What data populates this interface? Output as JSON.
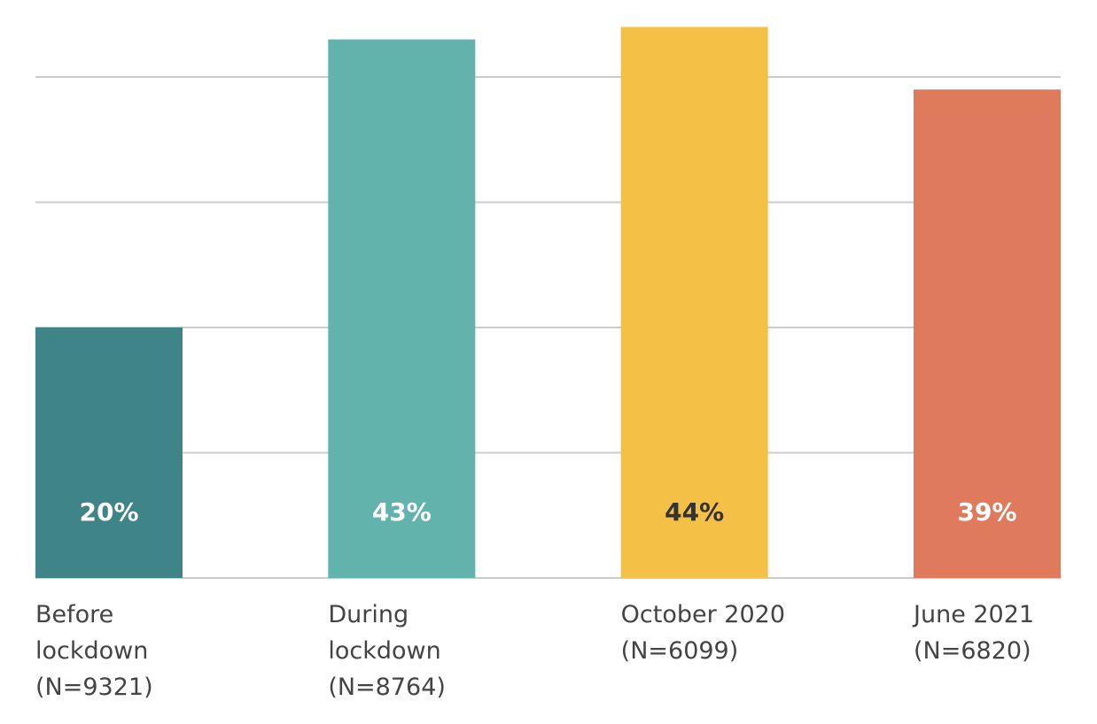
{
  "chart_data": {
    "type": "bar",
    "categories": [
      [
        "Before",
        "lockdown",
        "(N=9321)"
      ],
      [
        "During",
        "lockdown",
        "(N=8764)"
      ],
      [
        "October 2020",
        "(N=6099)"
      ],
      [
        "June 2021",
        "(N=6820)"
      ]
    ],
    "values": [
      20,
      43,
      44,
      39
    ],
    "value_labels": [
      "20%",
      "43%",
      "44%",
      "39%"
    ],
    "unit": "%",
    "ylim": [
      0,
      40
    ],
    "gridlines": [
      0,
      10,
      20,
      30,
      40
    ],
    "grid": true,
    "legend": "none",
    "colors": [
      "#3f8487",
      "#62b3ab",
      "#f4c146",
      "#df7a5d"
    ],
    "value_label_colors": [
      "#ffffff",
      "#ffffff",
      "#333333",
      "#ffffff"
    ],
    "grid_color": "#cccccc",
    "label_color": "#444444"
  }
}
